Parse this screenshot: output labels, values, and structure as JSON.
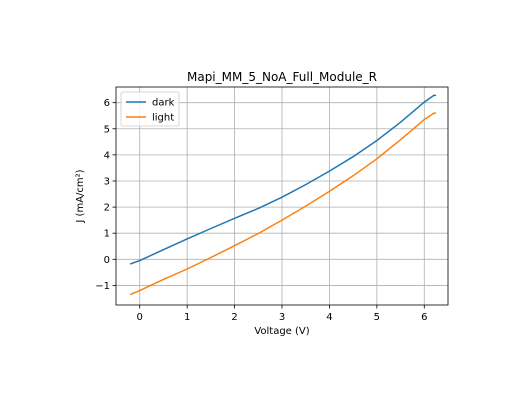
{
  "chart_data": {
    "type": "line",
    "title": "Mapi_MM_5_NoA_Full_Module_R",
    "xlabel": "Voltage (V)",
    "ylabel": "J (mA/cm²)",
    "xlim": [
      -0.5,
      6.5
    ],
    "ylim": [
      -1.75,
      6.6
    ],
    "xticks": [
      0,
      1,
      2,
      3,
      4,
      5,
      6
    ],
    "yticks": [
      -1,
      0,
      1,
      2,
      3,
      4,
      5,
      6
    ],
    "grid": true,
    "legend_position": "top-left",
    "series": [
      {
        "name": "dark",
        "color": "#1f77b4",
        "x": [
          -0.2,
          0.0,
          0.5,
          1.0,
          1.5,
          2.0,
          2.5,
          3.0,
          3.5,
          4.0,
          4.5,
          5.0,
          5.5,
          6.0,
          6.2,
          6.25
        ],
        "y": [
          -0.18,
          -0.05,
          0.37,
          0.78,
          1.18,
          1.57,
          1.95,
          2.38,
          2.86,
          3.38,
          3.93,
          4.55,
          5.25,
          6.02,
          6.28,
          6.28
        ]
      },
      {
        "name": "light",
        "color": "#ff7f0e",
        "x": [
          -0.2,
          0.0,
          0.5,
          1.0,
          1.5,
          2.0,
          2.5,
          3.0,
          3.5,
          4.0,
          4.5,
          5.0,
          5.5,
          6.0,
          6.2,
          6.25
        ],
        "y": [
          -1.35,
          -1.2,
          -0.77,
          -0.37,
          0.07,
          0.52,
          0.99,
          1.5,
          2.04,
          2.6,
          3.2,
          3.85,
          4.58,
          5.35,
          5.6,
          5.6
        ]
      }
    ]
  }
}
